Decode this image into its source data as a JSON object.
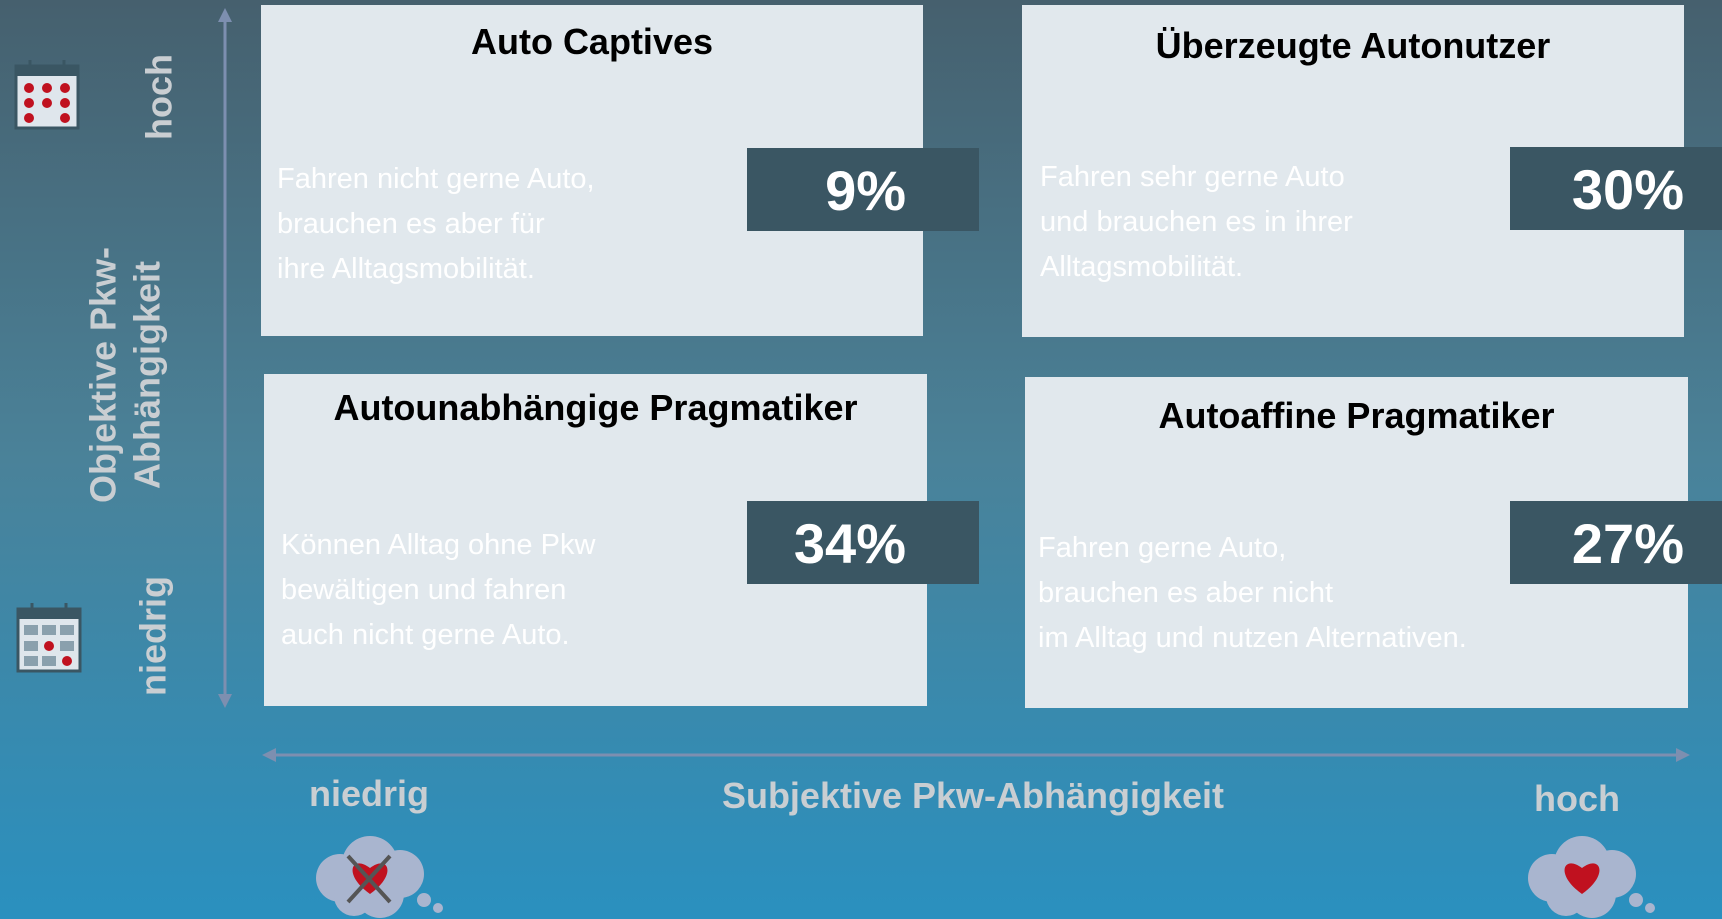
{
  "quadrants": [
    {
      "title": "Auto Captives",
      "share": "9%",
      "description": [
        "Fahren nicht gerne Auto,",
        "brauchen es aber für",
        "ihre Alltagsmobilität."
      ]
    },
    {
      "title": "Überzeugte Autonutzer",
      "share": "30%",
      "description": [
        "Fahren sehr gerne Auto",
        "und brauchen es in ihrer",
        "Alltagsmobilität."
      ]
    },
    {
      "title": "Autounabhängige Pragmatiker",
      "share": "34%",
      "description": [
        "Können Alltag ohne Pkw",
        "bewältigen und fahren",
        "auch nicht gerne Auto."
      ]
    },
    {
      "title": "Autoaffine Pragmatiker",
      "share": "27%",
      "description": [
        "Fahren gerne Auto,",
        "brauchen es aber nicht",
        "im Alltag und nutzen Alternativen."
      ]
    }
  ],
  "y_axis": {
    "label": [
      "Objektive Pkw-",
      "Abhängigkeit"
    ],
    "high": "hoch",
    "low": "niedrig"
  },
  "x_axis": {
    "label": "Subjektive Pkw-Abhängigkeit",
    "high": "hoch",
    "low": "niedrig"
  }
}
